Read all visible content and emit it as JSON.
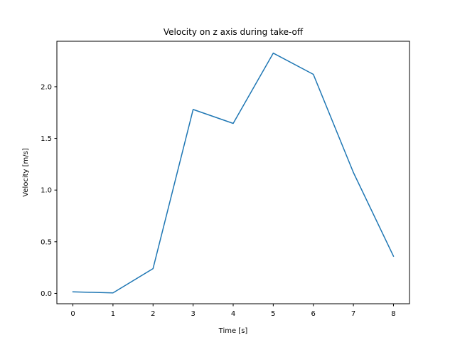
{
  "chart_data": {
    "type": "line",
    "title": "Velocity on z axis during take-off",
    "xlabel": "Time [s]",
    "ylabel": "Velocity [m/s]",
    "xlim": [
      -0.4,
      8.4
    ],
    "ylim": [
      -0.1,
      2.44
    ],
    "xticks": [
      0,
      1,
      2,
      3,
      4,
      5,
      6,
      7,
      8
    ],
    "xtick_labels": [
      "0",
      "1",
      "2",
      "3",
      "4",
      "5",
      "6",
      "7",
      "8"
    ],
    "yticks": [
      0.0,
      0.5,
      1.0,
      1.5,
      2.0
    ],
    "ytick_labels": [
      "0.0",
      "0.5",
      "1.0",
      "1.5",
      "2.0"
    ],
    "grid": false,
    "legend": "none",
    "series": [
      {
        "color": "#1f77b4",
        "x": [
          0,
          1,
          2,
          3,
          4,
          5,
          6,
          7,
          8
        ],
        "y": [
          0.015,
          0.005,
          0.24,
          1.78,
          1.645,
          2.325,
          2.12,
          1.17,
          0.36
        ]
      }
    ]
  }
}
